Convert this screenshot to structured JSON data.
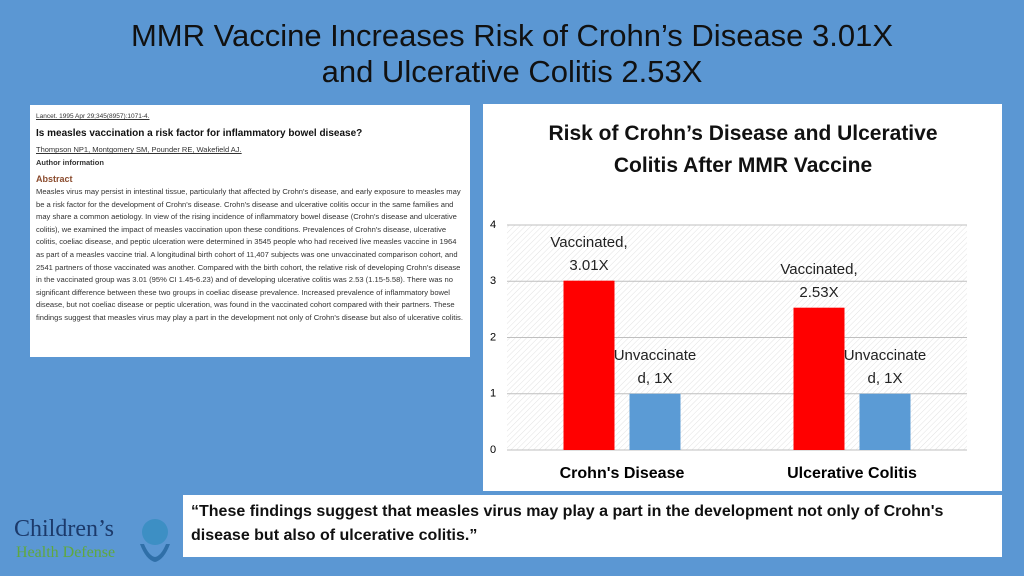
{
  "slide_title": "MMR Vaccine Increases Risk of Crohn’s Disease 3.01X and Ulcerative Colitis 2.53X",
  "abstract": {
    "citation": "Lancet. 1995 Apr 29;345(8957):1071-4.",
    "title": "Is measles vaccination a risk factor for inflammatory bowel disease?",
    "authors": "Thompson NP1, Montgomery SM, Pounder RE, Wakefield AJ.",
    "author_information": "Author information",
    "heading": "Abstract",
    "body": "Measles virus may persist in intestinal tissue, particularly that affected by Crohn's disease, and early exposure to measles may be a risk factor for the development of Crohn's disease. Crohn's disease and ulcerative colitis occur in the same families and may share a common aetiology. In view of the rising incidence of inflammatory bowel disease (Crohn's disease and ulcerative colitis), we examined the impact of measles vaccination upon these conditions. Prevalences of Crohn's disease, ulcerative colitis, coeliac disease, and peptic ulceration were determined in 3545 people who had received live measles vaccine in 1964 as part of a measles vaccine trial. A longitudinal birth cohort of 11,407 subjects was one unvaccinated comparison cohort, and 2541 partners of those vaccinated was another. Compared with the birth cohort, the relative risk of developing Crohn's disease in the vaccinated group was 3.01 (95% CI 1.45-6.23) and of developing ulcerative colitis was 2.53 (1.15-5.58). There was no significant difference between these two groups in coeliac disease prevalence. Increased prevalence of inflammatory bowel disease, but not coeliac disease or peptic ulceration, was found in the vaccinated cohort compared with their partners. These findings suggest that measles virus may play a part in the development not only of Crohn's disease but also of ulcerative colitis."
  },
  "chart_data": {
    "type": "bar",
    "title": "Risk of Crohn’s Disease and Ulcerative Colitis After MMR Vaccine",
    "categories": [
      "Crohn's Disease",
      "Ulcerative Colitis"
    ],
    "series": [
      {
        "color": "#ff0000",
        "values": [
          3.01,
          2.53
        ],
        "value_labels": [
          "Vaccinated, 3.01X",
          "Vaccinated, 2.53X"
        ]
      },
      {
        "color": "#5b9bd5",
        "values": [
          1,
          1
        ],
        "value_labels": [
          "Unvaccinated, 1X",
          "Unvaccinated, 1X"
        ]
      }
    ],
    "ylim": [
      0,
      4
    ],
    "yticks": [
      0,
      1,
      2,
      3,
      4
    ],
    "grid": true
  },
  "quote": "“These findings suggest that measles virus may play a part in the development not only of Crohn's disease but also of ulcerative colitis.”",
  "logo": {
    "line1": "Children’s",
    "line2": "Health Defense"
  }
}
